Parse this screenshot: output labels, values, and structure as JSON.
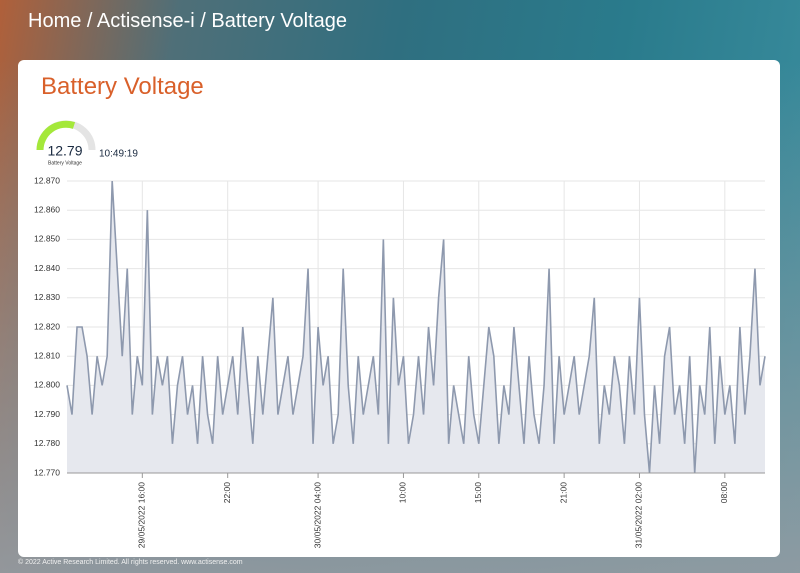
{
  "header": {
    "breadcrumb": "Home / Actisense-i / Battery Voltage"
  },
  "panel": {
    "title": "Battery Voltage",
    "gauge": {
      "value": "12.79",
      "label": "Battery Voltage",
      "time": "10:49:19"
    }
  },
  "chart_data": {
    "type": "line",
    "color": "#8e99ae",
    "fill": "#e6e8ee",
    "grid": true,
    "values": [
      12.8,
      12.79,
      12.82,
      12.82,
      12.81,
      12.79,
      12.81,
      12.8,
      12.81,
      12.87,
      12.84,
      12.81,
      12.84,
      12.79,
      12.81,
      12.8,
      12.86,
      12.79,
      12.81,
      12.8,
      12.81,
      12.78,
      12.8,
      12.81,
      12.79,
      12.8,
      12.78,
      12.81,
      12.79,
      12.78,
      12.81,
      12.79,
      12.8,
      12.81,
      12.79,
      12.82,
      12.8,
      12.78,
      12.81,
      12.79,
      12.81,
      12.83,
      12.79,
      12.8,
      12.81,
      12.79,
      12.8,
      12.81,
      12.84,
      12.78,
      12.82,
      12.8,
      12.81,
      12.78,
      12.79,
      12.84,
      12.8,
      12.78,
      12.81,
      12.79,
      12.8,
      12.81,
      12.79,
      12.85,
      12.78,
      12.83,
      12.8,
      12.81,
      12.78,
      12.79,
      12.81,
      12.79,
      12.82,
      12.8,
      12.83,
      12.85,
      12.78,
      12.8,
      12.79,
      12.78,
      12.81,
      12.79,
      12.78,
      12.8,
      12.82,
      12.81,
      12.78,
      12.8,
      12.79,
      12.82,
      12.8,
      12.78,
      12.81,
      12.79,
      12.78,
      12.8,
      12.84,
      12.78,
      12.81,
      12.79,
      12.8,
      12.81,
      12.79,
      12.8,
      12.81,
      12.83,
      12.78,
      12.8,
      12.79,
      12.81,
      12.8,
      12.78,
      12.81,
      12.79,
      12.83,
      12.79,
      12.77,
      12.8,
      12.78,
      12.81,
      12.82,
      12.79,
      12.8,
      12.78,
      12.81,
      12.77,
      12.8,
      12.79,
      12.82,
      12.78,
      12.81,
      12.79,
      12.8,
      12.78,
      12.82,
      12.79,
      12.81,
      12.84,
      12.8,
      12.81
    ],
    "xlim": [
      0,
      139
    ],
    "xticks": [
      {
        "value": 15,
        "label": "29/05/2022 16:00"
      },
      {
        "value": 32,
        "label": "22:00"
      },
      {
        "value": 50,
        "label": "30/05/2022 04:00"
      },
      {
        "value": 67,
        "label": "10:00"
      },
      {
        "value": 82,
        "label": "15:00"
      },
      {
        "value": 99,
        "label": "21:00"
      },
      {
        "value": 114,
        "label": "31/05/2022 02:00"
      },
      {
        "value": 131,
        "label": "08:00"
      }
    ],
    "ylim": [
      12.77,
      12.87
    ],
    "yticks": [
      {
        "value": 12.77,
        "label": "12.770"
      },
      {
        "value": 12.78,
        "label": "12.780"
      },
      {
        "value": 12.79,
        "label": "12.790"
      },
      {
        "value": 12.8,
        "label": "12.800"
      },
      {
        "value": 12.81,
        "label": "12.810"
      },
      {
        "value": 12.82,
        "label": "12.820"
      },
      {
        "value": 12.83,
        "label": "12.830"
      },
      {
        "value": 12.84,
        "label": "12.840"
      },
      {
        "value": 12.85,
        "label": "12.850"
      },
      {
        "value": 12.86,
        "label": "12.860"
      },
      {
        "value": 12.87,
        "label": "12.870"
      }
    ]
  },
  "footer": {
    "text": "© 2022 Active Research Limited. All rights reserved.  www.actisense.com"
  }
}
